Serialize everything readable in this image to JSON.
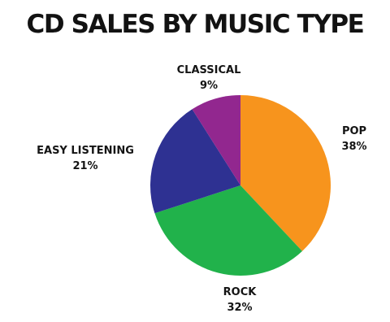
{
  "chart_data": {
    "type": "pie",
    "title": "CD SALES BY MUSIC TYPE",
    "slices": [
      {
        "label": "POP",
        "value": 38,
        "value_text": "38%",
        "color": "#F7941D"
      },
      {
        "label": "ROCK",
        "value": 32,
        "value_text": "32%",
        "color": "#21B24B"
      },
      {
        "label": "EASY LISTENING",
        "value": 21,
        "value_text": "21%",
        "color": "#2E3192"
      },
      {
        "label": "CLASSICAL",
        "value": 9,
        "value_text": "9%",
        "color": "#92278F"
      }
    ],
    "start": "12 o'clock",
    "direction": "clockwise",
    "legend": "none"
  }
}
